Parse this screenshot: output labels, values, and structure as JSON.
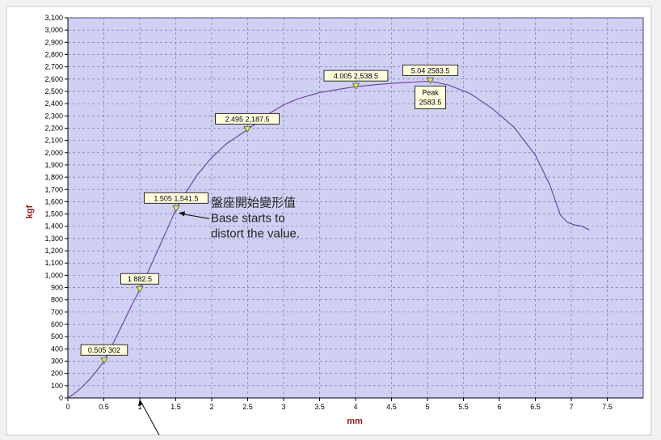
{
  "chart_data": {
    "type": "line",
    "xlabel": "mm",
    "ylabel": "kgf",
    "xlim": [
      0,
      8
    ],
    "ylim": [
      0,
      3100
    ],
    "x_ticks": [
      "0",
      "0.5",
      "1",
      "1.5",
      "2",
      "2.5",
      "3",
      "3.5",
      "4",
      "4.5",
      "5",
      "5.5",
      "6",
      "6.5",
      "7",
      "7.5"
    ],
    "y_ticks": [
      "0",
      "100",
      "200",
      "300",
      "400",
      "500",
      "600",
      "700",
      "800",
      "900",
      "1,000",
      "1,100",
      "1,200",
      "1,300",
      "1,400",
      "1,500",
      "1,600",
      "1,700",
      "1,800",
      "1,900",
      "2,000",
      "2,100",
      "2,200",
      "2,300",
      "2,400",
      "2,500",
      "2,600",
      "2,700",
      "2,800",
      "2,900",
      "3,000",
      "3,100"
    ],
    "grid": true,
    "colors": {
      "plot_background": "#cfd0f2",
      "line": "#6a3d9a",
      "marker": "#e8e84a",
      "axis_title": "#8b1a1a",
      "label_box": "#ffffe0"
    },
    "series": [
      {
        "x": [
          0,
          0.1,
          0.2,
          0.3,
          0.4,
          0.505,
          0.6,
          0.7,
          0.8,
          0.9,
          1.0,
          1.1,
          1.2,
          1.3,
          1.4,
          1.505,
          1.6,
          1.8,
          2.0,
          2.2,
          2.495,
          2.8,
          3.0,
          3.2,
          3.5,
          3.8,
          4.005,
          4.3,
          4.6,
          5.04,
          5.3,
          5.6,
          5.9,
          6.2,
          6.5,
          6.7,
          6.85,
          6.95,
          7.05,
          7.15,
          7.25
        ],
        "y": [
          0,
          40,
          90,
          150,
          220,
          302,
          410,
          530,
          650,
          770,
          882.5,
          1010,
          1140,
          1270,
          1400,
          1541.5,
          1640,
          1820,
          1960,
          2070,
          2187.5,
          2320,
          2390,
          2440,
          2490,
          2520,
          2538.5,
          2555,
          2570,
          2583.5,
          2550,
          2480,
          2360,
          2210,
          1980,
          1740,
          1490,
          1430,
          1410,
          1400,
          1370
        ]
      }
    ],
    "point_labels": [
      {
        "x": 0.505,
        "y": 302,
        "text": "0.505 302"
      },
      {
        "x": 1.0,
        "y": 882.5,
        "text": "1 882.5"
      },
      {
        "x": 1.505,
        "y": 1541.5,
        "text": "1.505 1,541.5"
      },
      {
        "x": 2.495,
        "y": 2187.5,
        "text": "2.495 2,187.5"
      },
      {
        "x": 4.005,
        "y": 2538.5,
        "text": "4.005 2,538.5"
      },
      {
        "x": 5.04,
        "y": 2583.5,
        "text": "5.04 2583.5"
      }
    ],
    "peak_label": {
      "x": 5.04,
      "y": 2583.5,
      "line1": "Peak",
      "line2": "2583.5"
    },
    "annotation": {
      "x": 1.505,
      "y": 1541.5,
      "line1": "盤座開始變形值",
      "line2": "Base starts to",
      "line3": "distort the value."
    }
  }
}
